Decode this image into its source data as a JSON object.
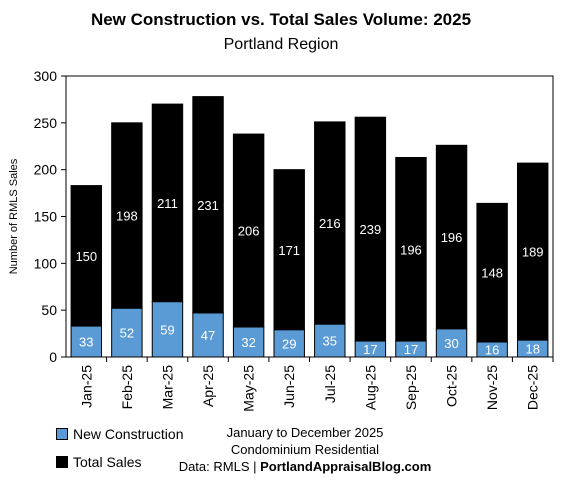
{
  "chart_data": {
    "type": "bar",
    "stacked": true,
    "title": "New Construction vs. Total Sales Volume: 2025",
    "subtitle": "Portland Region",
    "ylabel": "Number of RMLS Sales",
    "ylim": [
      0,
      300
    ],
    "yticks": [
      0,
      50,
      100,
      150,
      200,
      250,
      300
    ],
    "categories": [
      "Jan-25",
      "Feb-25",
      "Mar-25",
      "Apr-25",
      "May-25",
      "Jun-25",
      "Jul-25",
      "Aug-25",
      "Sep-25",
      "Oct-25",
      "Nov-25",
      "Dec-25"
    ],
    "series": [
      {
        "name": "New Construction",
        "color": "#5b9bd5",
        "values": [
          33,
          52,
          59,
          47,
          32,
          29,
          35,
          17,
          17,
          30,
          16,
          18
        ]
      },
      {
        "name": "Total Sales",
        "color": "#000000",
        "values": [
          150,
          198,
          211,
          231,
          206,
          171,
          216,
          239,
          196,
          196,
          148,
          189
        ]
      }
    ],
    "grid": false,
    "legend_position": "bottom-left"
  },
  "notes": {
    "period": "January to December 2025",
    "type": "Condominium Residential",
    "source_prefix": "Data: RMLS | ",
    "source_site": "PortlandAppraisalBlog.com"
  }
}
